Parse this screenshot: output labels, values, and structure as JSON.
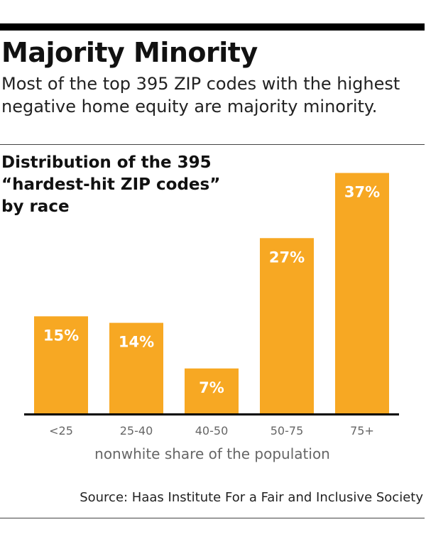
{
  "header": {
    "title": "Majority Minority",
    "subtitle": "Most of the top 395 ZIP codes with the highest negative home equity are majority minority."
  },
  "chart_data": {
    "type": "bar",
    "title": "Distribution of the 395 “hardest-hit ZIP codes” by race",
    "xlabel": "nonwhite share of the population",
    "ylabel": "",
    "categories": [
      "<25",
      "25-40",
      "40-50",
      "50-75",
      "75+"
    ],
    "values": [
      15,
      14,
      7,
      27,
      37
    ],
    "value_labels": [
      "15%",
      "14%",
      "7%",
      "27%",
      "37%"
    ],
    "ylim": [
      0,
      40
    ],
    "grid": false,
    "legend": "none",
    "bar_color": "#f7a823",
    "label_color": "#ffffff"
  },
  "footer": {
    "source": "Source: Haas Institute For a Fair and Inclusive Society"
  }
}
